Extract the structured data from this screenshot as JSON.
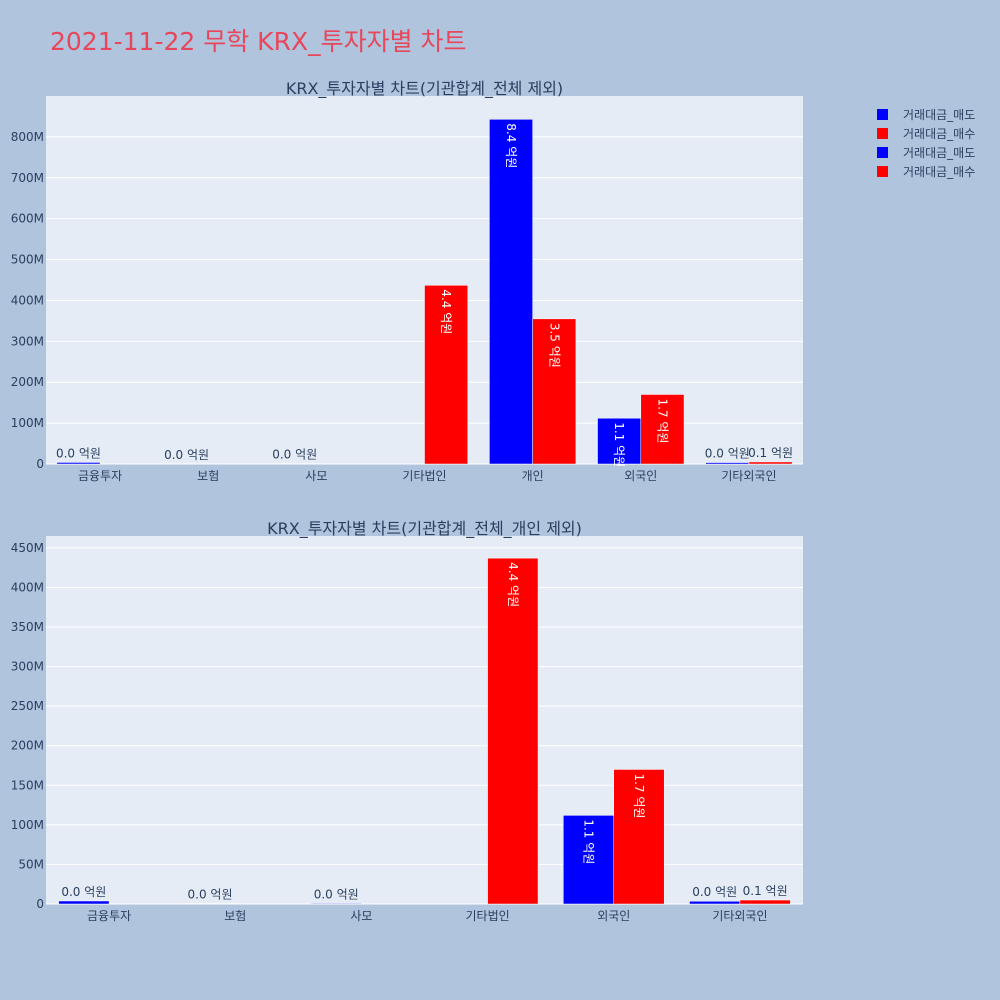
{
  "page": {
    "title": "2021-11-22 무학 KRX_투자자별 차트",
    "background": "#b0c4de",
    "plot_background": "#e5ecf6",
    "title_color": "#e8465a"
  },
  "legend": {
    "placement": "top-right",
    "items": [
      {
        "label": "거래대금_매도",
        "color": "#0000ff"
      },
      {
        "label": "거래대금_매수",
        "color": "#ff0000"
      },
      {
        "label": "거래대금_매도",
        "color": "#0000ff"
      },
      {
        "label": "거래대금_매수",
        "color": "#ff0000"
      }
    ]
  },
  "chart_data": [
    {
      "type": "bar",
      "title": "KRX_투자자별 차트(기관합계_전체 제외)",
      "categories": [
        "금융투자",
        "보험",
        "사모",
        "기타법인",
        "개인",
        "외국인",
        "기타외국인"
      ],
      "ylim": [
        0,
        900000000
      ],
      "yticks": [
        0,
        100000000,
        200000000,
        300000000,
        400000000,
        500000000,
        600000000,
        700000000,
        800000000
      ],
      "ytick_labels": [
        "0",
        "100M",
        "200M",
        "300M",
        "400M",
        "500M",
        "600M",
        "700M",
        "800M"
      ],
      "grid": true,
      "series": [
        {
          "name": "거래대금_매도",
          "color": "#0000ff",
          "values": [
            3800000,
            600000,
            800000,
            0,
            843000000,
            112000000,
            3500000
          ],
          "labels": [
            "0.0 억원",
            "0.0 억원",
            "0.0 억원",
            "",
            "8.4 억원",
            "1.1 억원",
            "0.0 억원"
          ]
        },
        {
          "name": "거래대금_매수",
          "color": "#ff0000",
          "values": [
            0,
            0,
            0,
            437000000,
            355000000,
            170000000,
            5000000
          ],
          "labels": [
            "",
            "",
            "",
            "4.4 억원",
            "3.5 억원",
            "1.7 억원",
            "0.1 억원"
          ]
        }
      ]
    },
    {
      "type": "bar",
      "title": "KRX_투자자별 차트(기관합계_전체_개인 제외)",
      "categories": [
        "금융투자",
        "보험",
        "사모",
        "기타법인",
        "외국인",
        "기타외국인"
      ],
      "ylim": [
        0,
        465000000
      ],
      "yticks": [
        0,
        50000000,
        100000000,
        150000000,
        200000000,
        250000000,
        300000000,
        350000000,
        400000000,
        450000000
      ],
      "ytick_labels": [
        "0",
        "50M",
        "100M",
        "150M",
        "200M",
        "250M",
        "300M",
        "350M",
        "400M",
        "450M"
      ],
      "grid": true,
      "series": [
        {
          "name": "거래대금_매도",
          "color": "#0000ff",
          "values": [
            3800000,
            600000,
            800000,
            0,
            112000000,
            3500000
          ],
          "labels": [
            "0.0 억원",
            "0.0 억원",
            "0.0 억원",
            "",
            "1.1 억원",
            "0.0 억원"
          ]
        },
        {
          "name": "거래대금_매수",
          "color": "#ff0000",
          "values": [
            0,
            0,
            0,
            437000000,
            170000000,
            5000000
          ],
          "labels": [
            "",
            "",
            "",
            "4.4 억원",
            "1.7 억원",
            "0.1 억원"
          ]
        }
      ]
    }
  ]
}
